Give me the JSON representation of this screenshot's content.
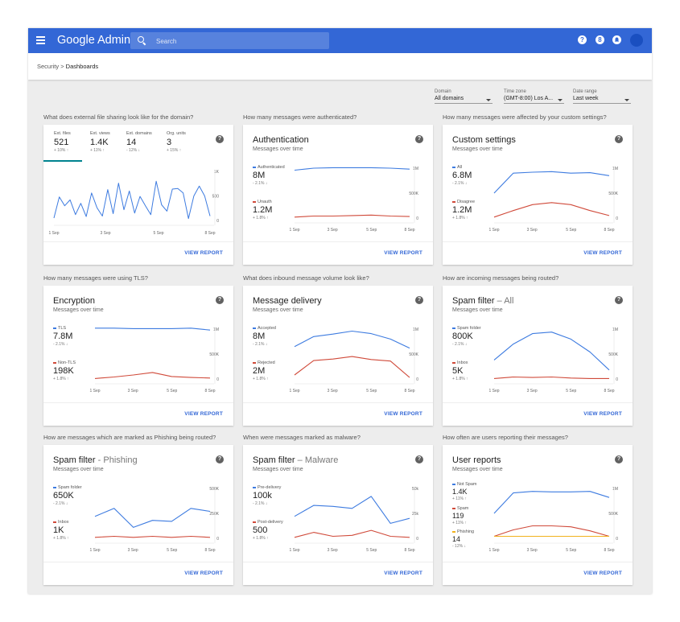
{
  "app": {
    "logo": "Google Admin",
    "search_placeholder": "Search",
    "help_icon": "?",
    "apps_icon": "8"
  },
  "breadcrumb": {
    "parent": "Security",
    "separator": ">",
    "current": "Dashboards"
  },
  "filters": [
    {
      "label": "Domain",
      "value": "All domains"
    },
    {
      "label": "Time zone",
      "value": "(GMT-8:00) Los A..."
    },
    {
      "label": "Date range",
      "value": "Last week"
    }
  ],
  "colors": {
    "blue": "#3d7be0",
    "red": "#d04a3a",
    "yellow": "#f2b21c",
    "teal": "#00838f"
  },
  "view_report": "VIEW REPORT",
  "help_mark": "?",
  "cards": [
    {
      "question": "What does external file sharing look like for the domain?",
      "tabs": [
        {
          "label": "Ext. files",
          "value": "521",
          "change": "+ 10% ↑"
        },
        {
          "label": "Ext. views",
          "value": "1.4K",
          "change": "+ 11% ↑"
        },
        {
          "label": "Ext. domains",
          "value": "14",
          "change": "- 12% ↓"
        },
        {
          "label": "Org. units",
          "value": "3",
          "change": "+ 15% ↑"
        }
      ],
      "chart_data": {
        "type": "line",
        "x_ticks": [
          "1 Sep",
          "3 Sep",
          "5 Sep",
          "8 Sep"
        ],
        "y_ticks": [
          "1K",
          "500",
          "0"
        ],
        "ylim": [
          0,
          1000
        ],
        "series": [
          {
            "name": "Ext. files",
            "color": "#3d7be0",
            "values": [
              50,
              480,
              300,
              420,
              120,
              350,
              80,
              560,
              260,
              90,
              630,
              140,
              760,
              220,
              600,
              150,
              490,
              300,
              120,
              800,
              320,
              190,
              640,
              650,
              560,
              40,
              500,
              700,
              500,
              90
            ]
          }
        ]
      }
    },
    {
      "question": "How many messages were authenticated?",
      "title": "Authentication",
      "title_suffix": "",
      "subtitle": "Messages over time",
      "metrics": [
        {
          "label": "Authenticated",
          "value": "8M",
          "change": "- 2.1% ↓",
          "color": "#3d7be0"
        },
        {
          "label": "Unauth",
          "value": "1.2M",
          "change": "+ 1.8% ↑",
          "color": "#d04a3a"
        }
      ],
      "chart_data": {
        "type": "line",
        "x_ticks": [
          "1 Sep",
          "3 Sep",
          "5 Sep",
          "8 Sep"
        ],
        "y_ticks": [
          "1M",
          "500K",
          "0"
        ],
        "ylim": [
          0,
          1000000
        ],
        "series": [
          {
            "name": "Authenticated",
            "color": "#3d7be0",
            "values": [
              960000,
              1000000,
              1010000,
              1010000,
              1010000,
              1000000,
              980000
            ]
          },
          {
            "name": "Unauth",
            "color": "#d04a3a",
            "values": [
              20000,
              40000,
              40000,
              50000,
              60000,
              40000,
              30000
            ]
          }
        ]
      }
    },
    {
      "question": "How many messages were affected by your custom settings?",
      "title": "Custom settings",
      "title_suffix": "",
      "subtitle": "Messages over time",
      "metrics": [
        {
          "label": "All",
          "value": "6.8M",
          "change": "- 2.1% ↓",
          "color": "#3d7be0"
        },
        {
          "label": "Disagree",
          "value": "1.2M",
          "change": "+ 1.8% ↑",
          "color": "#d04a3a"
        }
      ],
      "chart_data": {
        "type": "line",
        "x_ticks": [
          "1 Sep",
          "3 Sep",
          "5 Sep",
          "8 Sep"
        ],
        "y_ticks": [
          "1M",
          "500K",
          "0"
        ],
        "ylim": [
          0,
          1000000
        ],
        "series": [
          {
            "name": "All",
            "color": "#3d7be0",
            "values": [
              500000,
              900000,
              920000,
              930000,
              900000,
              910000,
              850000
            ]
          },
          {
            "name": "Disagree",
            "color": "#d04a3a",
            "values": [
              20000,
              150000,
              270000,
              310000,
              270000,
              150000,
              50000
            ]
          }
        ]
      }
    },
    {
      "question": "How many messages were using TLS?",
      "title": "Encryption",
      "title_suffix": "",
      "subtitle": "Messages over time",
      "metrics": [
        {
          "label": "TLS",
          "value": "7.8M",
          "change": "- 2.1% ↓",
          "color": "#3d7be0"
        },
        {
          "label": "Non-TLS",
          "value": "198K",
          "change": "+ 1.8% ↑",
          "color": "#d04a3a"
        }
      ],
      "chart_data": {
        "type": "line",
        "x_ticks": [
          "1 Sep",
          "3 Sep",
          "5 Sep",
          "8 Sep"
        ],
        "y_ticks": [
          "1M",
          "500K",
          "0"
        ],
        "ylim": [
          0,
          1000000
        ],
        "series": [
          {
            "name": "TLS",
            "color": "#3d7be0",
            "values": [
              1020000,
              1020000,
              1010000,
              1010000,
              1010000,
              1020000,
              980000
            ]
          },
          {
            "name": "Non-TLS",
            "color": "#d04a3a",
            "values": [
              10000,
              40000,
              80000,
              130000,
              50000,
              30000,
              20000
            ]
          }
        ]
      }
    },
    {
      "question": "What does inbound message volume look like?",
      "title": "Message delivery",
      "title_suffix": "",
      "subtitle": "Messages over time",
      "metrics": [
        {
          "label": "Accepted",
          "value": "8M",
          "change": "- 2.1% ↓",
          "color": "#3d7be0"
        },
        {
          "label": "Rejected",
          "value": "2M",
          "change": "+ 1.8% ↑",
          "color": "#d04a3a"
        }
      ],
      "chart_data": {
        "type": "line",
        "x_ticks": [
          "1 Sep",
          "3 Sep",
          "5 Sep",
          "8 Sep"
        ],
        "y_ticks": [
          "1M",
          "500K",
          "0"
        ],
        "ylim": [
          0,
          1000000
        ],
        "series": [
          {
            "name": "Accepted",
            "color": "#3d7be0",
            "values": [
              650000,
              850000,
              900000,
              960000,
              910000,
              800000,
              620000
            ]
          },
          {
            "name": "Rejected",
            "color": "#d04a3a",
            "values": [
              80000,
              370000,
              400000,
              450000,
              390000,
              360000,
              30000
            ]
          }
        ]
      }
    },
    {
      "question": "How are incoming messages being routed?",
      "title": "Spam filter",
      "title_suffix": "– All",
      "subtitle": "Messages over time",
      "metrics": [
        {
          "label": "Spam folder",
          "value": "800K",
          "change": "- 2.1% ↓",
          "color": "#3d7be0"
        },
        {
          "label": "Inbox",
          "value": "5K",
          "change": "+ 1.8% ↑",
          "color": "#d04a3a"
        }
      ],
      "chart_data": {
        "type": "line",
        "x_ticks": [
          "1 Sep",
          "3 Sep",
          "5 Sep",
          "8 Sep"
        ],
        "y_ticks": [
          "1M",
          "500K",
          "0"
        ],
        "ylim": [
          0,
          1000000
        ],
        "series": [
          {
            "name": "Spam folder",
            "color": "#3d7be0",
            "values": [
              380000,
              700000,
              910000,
              940000,
              800000,
              540000,
              180000
            ]
          },
          {
            "name": "Inbox",
            "color": "#d04a3a",
            "values": [
              10000,
              40000,
              30000,
              40000,
              20000,
              10000,
              10000
            ]
          }
        ]
      }
    },
    {
      "question": "How are messages which are marked as Phishing being routed?",
      "title": "Spam filter",
      "title_suffix": "- Phishing",
      "subtitle": "Messages over time",
      "metrics": [
        {
          "label": "Spam folder",
          "value": "650K",
          "change": "- 2.1% ↓",
          "color": "#3d7be0"
        },
        {
          "label": "Inbox",
          "value": "1K",
          "change": "+ 1.8% ↑",
          "color": "#d04a3a"
        }
      ],
      "chart_data": {
        "type": "line",
        "x_ticks": [
          "1 Sep",
          "3 Sep",
          "5 Sep",
          "8 Sep"
        ],
        "y_ticks": [
          "500K",
          "250K",
          "0"
        ],
        "ylim": [
          0,
          500000
        ],
        "series": [
          {
            "name": "Spam folder",
            "color": "#3d7be0",
            "values": [
              220000,
              300000,
              110000,
              180000,
              170000,
              300000,
              270000
            ]
          },
          {
            "name": "Inbox",
            "color": "#d04a3a",
            "values": [
              10000,
              20000,
              10000,
              20000,
              10000,
              20000,
              10000
            ]
          }
        ]
      }
    },
    {
      "question": "When were messages marked as malware?",
      "title": "Spam filter",
      "title_suffix": "– Malware",
      "subtitle": "Messages over time",
      "metrics": [
        {
          "label": "Pre-delivery",
          "value": "100k",
          "change": "- 2.1% ↓",
          "color": "#3d7be0"
        },
        {
          "label": "Post-delivery",
          "value": "500",
          "change": "+ 1.8% ↑",
          "color": "#d04a3a"
        }
      ],
      "chart_data": {
        "type": "line",
        "x_ticks": [
          "1 Sep",
          "3 Sep",
          "5 Sep",
          "8 Sep"
        ],
        "y_ticks": [
          "50k",
          "25k",
          "0"
        ],
        "ylim": [
          0,
          50000
        ],
        "series": [
          {
            "name": "Pre-delivery",
            "color": "#3d7be0",
            "values": [
              22000,
              33000,
              32000,
              30000,
              42000,
              15000,
              20000
            ]
          },
          {
            "name": "Post-delivery",
            "color": "#d04a3a",
            "values": [
              1000,
              6000,
              2000,
              3000,
              8000,
              2000,
              1000
            ]
          }
        ]
      }
    },
    {
      "question": "How often are users reporting their messages?",
      "title": "User reports",
      "title_suffix": "",
      "subtitle": "Messages over time",
      "metrics": [
        {
          "label": "Not Spam",
          "value": "1.4K",
          "change": "+ 11% ↑",
          "color": "#3d7be0"
        },
        {
          "label": "Spam",
          "value": "119",
          "change": "+ 11% ↑",
          "color": "#d04a3a"
        },
        {
          "label": "Phishing",
          "value": "14",
          "change": "- 12% ↓",
          "color": "#f2b21c"
        }
      ],
      "chart_data": {
        "type": "line",
        "x_ticks": [
          "1 Sep",
          "3 Sep",
          "5 Sep",
          "8 Sep"
        ],
        "y_ticks": [
          "1M",
          "500K",
          "0"
        ],
        "ylim": [
          0,
          1000000
        ],
        "series": [
          {
            "name": "Not Spam",
            "color": "#3d7be0",
            "values": [
              500000,
              910000,
              940000,
              930000,
              930000,
              940000,
              820000
            ]
          },
          {
            "name": "Spam",
            "color": "#d04a3a",
            "values": [
              40000,
              170000,
              250000,
              250000,
              230000,
              150000,
              40000
            ]
          },
          {
            "name": "Phishing",
            "color": "#f2b21c",
            "values": [
              40000,
              40000,
              40000,
              40000,
              40000,
              40000,
              40000
            ]
          }
        ]
      }
    }
  ]
}
